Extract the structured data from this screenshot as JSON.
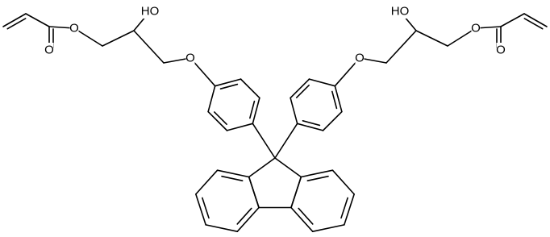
{
  "atoms": [
    {
      "label": "O"
    },
    {
      "label": "O"
    },
    {
      "label": "HO"
    },
    {
      "label": "O"
    },
    {
      "label": "O"
    },
    {
      "label": "HO"
    },
    {
      "label": "O"
    },
    {
      "label": "O"
    }
  ]
}
